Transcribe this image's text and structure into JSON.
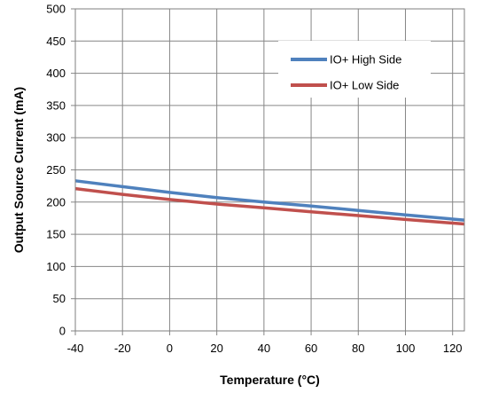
{
  "chart_data": {
    "type": "line",
    "title": "",
    "xlabel": "Temperature  (°C)",
    "ylabel": "Output Source Current (mA)",
    "xlim": [
      -40,
      125
    ],
    "ylim": [
      0,
      500
    ],
    "x_ticks": [
      -40,
      -20,
      0,
      20,
      40,
      60,
      80,
      100,
      120
    ],
    "y_ticks": [
      0,
      50,
      100,
      150,
      200,
      250,
      300,
      350,
      400,
      450,
      500
    ],
    "grid": true,
    "legend_position": "top-right",
    "series": [
      {
        "name": "IO+ High Side",
        "color": "#4f81bd",
        "x": [
          -40,
          -20,
          0,
          20,
          40,
          60,
          80,
          100,
          125
        ],
        "y": [
          233,
          224,
          215,
          207,
          200,
          194,
          187,
          180,
          172
        ]
      },
      {
        "name": "IO+ Low Side",
        "color": "#c0504d",
        "x": [
          -40,
          -20,
          0,
          20,
          40,
          60,
          80,
          100,
          125
        ],
        "y": [
          221,
          212,
          204,
          197,
          191,
          185,
          179,
          173,
          166
        ]
      }
    ]
  }
}
